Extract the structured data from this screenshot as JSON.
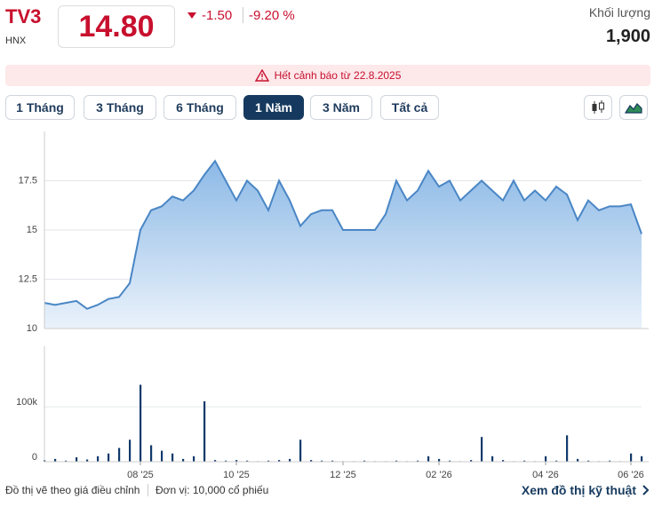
{
  "header": {
    "ticker": "TV3",
    "exchange": "HNX",
    "price": "14.80",
    "change": "-1.50",
    "change_pct": "-9.20 %",
    "volume_label": "Khối lượng",
    "volume": "1,900"
  },
  "warning": "Hết cảnh báo từ 22.8.2025",
  "ranges": [
    "1 Tháng",
    "3 Tháng",
    "6 Tháng",
    "1 Năm",
    "3 Năm",
    "Tất cả"
  ],
  "selected_range": 3,
  "footer": {
    "note": "Đồ thị vẽ theo giá điều chỉnh",
    "unit": "Đơn vị: 10,000 cổ phiếu",
    "link": "Xem đồ thị kỹ thuật"
  },
  "chart_data": [
    {
      "type": "area",
      "color": "#4a86c5",
      "ylim": [
        10,
        20
      ],
      "yticks": [
        10,
        12.5,
        15,
        17.5
      ],
      "grid": true,
      "values": [
        11.3,
        11.2,
        11.3,
        11.4,
        11.0,
        11.2,
        11.5,
        11.6,
        12.3,
        15.0,
        16.0,
        16.2,
        16.7,
        16.5,
        17.0,
        17.8,
        18.5,
        17.5,
        16.5,
        17.5,
        17.0,
        16.0,
        17.5,
        16.5,
        15.2,
        15.8,
        16.0,
        16.0,
        15.0,
        15.0,
        15.0,
        15.0,
        15.8,
        17.5,
        16.5,
        17.0,
        18.0,
        17.2,
        17.5,
        16.5,
        17.0,
        17.5,
        17.0,
        16.5,
        17.5,
        16.5,
        17.0,
        16.5,
        17.2,
        16.8,
        15.5,
        16.5,
        16.0,
        16.2,
        16.2,
        16.3,
        14.8
      ]
    },
    {
      "type": "bar",
      "color": "#0f3a6b",
      "ylim": [
        0,
        210000
      ],
      "yticks": [
        0,
        {
          "value": 100000,
          "label": "100k"
        }
      ],
      "grid": true,
      "categories": [
        null,
        null,
        null,
        null,
        null,
        null,
        null,
        null,
        null,
        "08 '25",
        null,
        null,
        null,
        null,
        null,
        null,
        null,
        null,
        "10 '25",
        null,
        null,
        null,
        null,
        null,
        null,
        null,
        null,
        null,
        "12 '25",
        null,
        null,
        null,
        null,
        null,
        null,
        null,
        null,
        "02 '26",
        null,
        null,
        null,
        null,
        null,
        null,
        null,
        null,
        null,
        "04 '26",
        null,
        null,
        null,
        null,
        null,
        null,
        null,
        "06 '26",
        null
      ],
      "values": [
        3000,
        5000,
        2000,
        8000,
        4000,
        10000,
        15000,
        25000,
        40000,
        140000,
        30000,
        20000,
        15000,
        5000,
        10000,
        110000,
        3000,
        2000,
        3000,
        2000,
        1000,
        2000,
        3000,
        5000,
        40000,
        3000,
        2000,
        2000,
        1000,
        1000,
        2000,
        1000,
        1000,
        2000,
        1000,
        2000,
        10000,
        5000,
        2000,
        1000,
        3000,
        45000,
        10000,
        3000,
        1000,
        2000,
        1000,
        10000,
        2000,
        48000,
        5000,
        2000,
        1000,
        2000,
        1000,
        15000,
        10000
      ]
    }
  ]
}
